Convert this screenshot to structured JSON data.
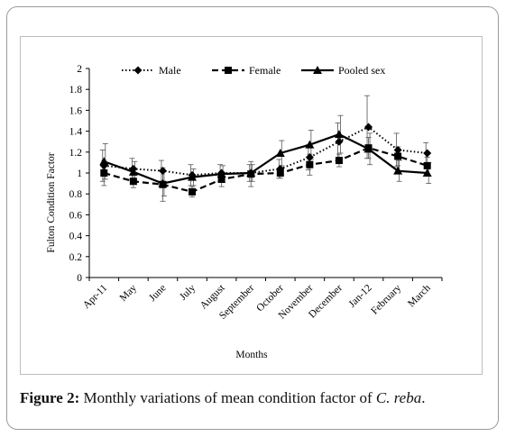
{
  "chart_data": {
    "type": "line",
    "title": "",
    "xlabel": "Months",
    "ylabel": "Fulton Condition Factor",
    "ylim": [
      0,
      2
    ],
    "yticks": [
      "0",
      "0.2",
      "0.4",
      "0.6",
      "0.8",
      "1",
      "1.2",
      "1.4",
      "1.6",
      "1.8",
      "2"
    ],
    "categories": [
      "Apr-11",
      "May",
      "June",
      "July",
      "August",
      "September",
      "October",
      "November",
      "December",
      "Jan-12",
      "February",
      "March"
    ],
    "legend_position": "top",
    "grid": false,
    "series": [
      {
        "name": "Male",
        "line": "dotted",
        "marker": "diamond",
        "values": [
          1.07,
          1.04,
          1.02,
          0.98,
          1.0,
          1.0,
          1.04,
          1.15,
          1.3,
          1.44,
          1.22,
          1.19
        ],
        "error": [
          0.15,
          0.1,
          0.1,
          0.1,
          0.08,
          0.08,
          0.09,
          0.12,
          0.18,
          0.3,
          0.16,
          0.1
        ]
      },
      {
        "name": "Female",
        "line": "dashed",
        "marker": "square",
        "values": [
          1.0,
          0.92,
          0.89,
          0.82,
          0.94,
          0.99,
          1.0,
          1.08,
          1.12,
          1.24,
          1.16,
          1.07
        ],
        "error": [
          0.12,
          0.06,
          0.16,
          0.05,
          0.07,
          0.12,
          0.05,
          0.1,
          0.06,
          0.1,
          0.09,
          0.08
        ]
      },
      {
        "name": "Pooled sex",
        "line": "solid",
        "marker": "triangle",
        "values": [
          1.11,
          1.01,
          0.9,
          0.96,
          0.99,
          1.0,
          1.19,
          1.27,
          1.37,
          1.23,
          1.02,
          1.0
        ],
        "error": [
          0.17,
          0.1,
          0.12,
          0.08,
          0.08,
          0.08,
          0.12,
          0.14,
          0.18,
          0.15,
          0.1,
          0.1
        ]
      }
    ]
  },
  "caption": {
    "figure_label": "Figure 2:",
    "text_before": " Monthly variations of mean condition factor of ",
    "species": "C. reba",
    "text_after": "."
  },
  "colors": {
    "series": "#000000",
    "axis": "#000000",
    "frame": "#9a9a9a"
  }
}
